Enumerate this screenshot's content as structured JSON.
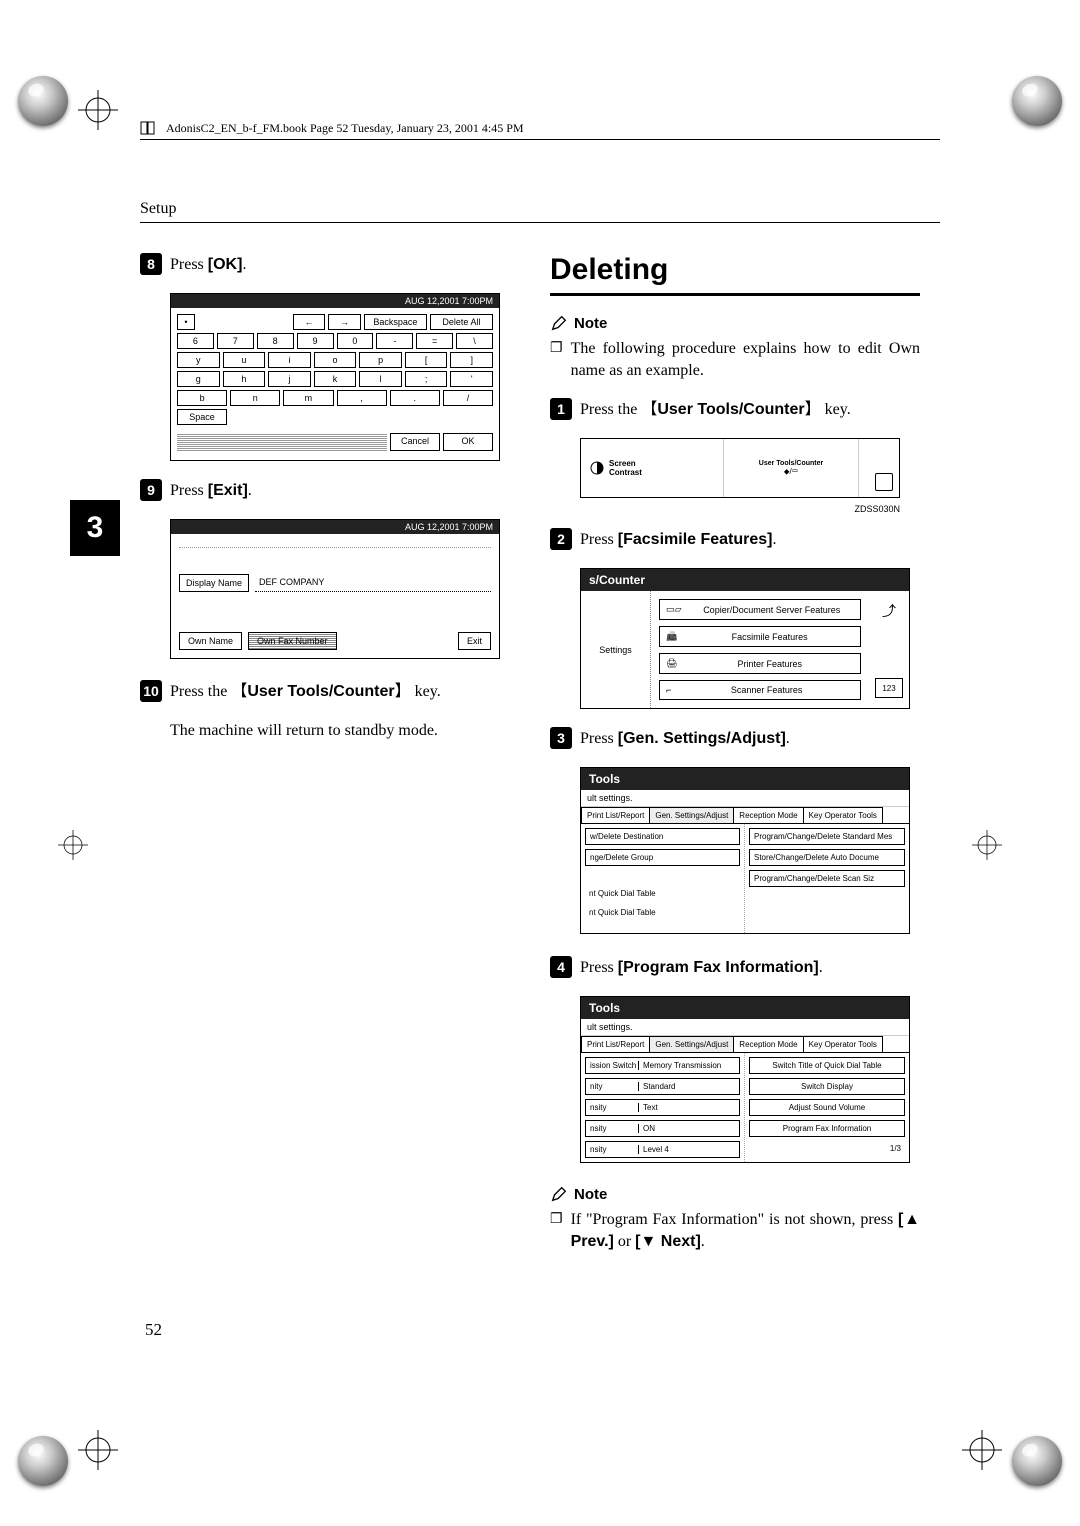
{
  "book_header": "AdonisC2_EN_b-f_FM.book  Page 52  Tuesday, January 23, 2001  4:45 PM",
  "section_label": "Setup",
  "sidebar_number": "3",
  "page_number": "52",
  "left": {
    "step8": {
      "num": "8",
      "prefix": "Press ",
      "button": "[OK]",
      "suffix": "."
    },
    "kbd_header": "AUG  12,2001  7:00PM",
    "kbd": {
      "nav": [
        "←",
        "→",
        "Backspace",
        "Delete All"
      ],
      "r1": [
        "6",
        "7",
        "8",
        "9",
        "0",
        "-",
        "=",
        "\\"
      ],
      "r2": [
        "y",
        "u",
        "i",
        "o",
        "p",
        "[",
        "]"
      ],
      "r3": [
        "g",
        "h",
        "j",
        "k",
        "l",
        ";",
        "'"
      ],
      "r4": [
        "b",
        "n",
        "m",
        ",",
        ".",
        "/"
      ],
      "space": "Space",
      "cancel": "Cancel",
      "ok": "OK"
    },
    "step9": {
      "num": "9",
      "prefix": "Press ",
      "button": "[Exit]",
      "suffix": "."
    },
    "display_name": {
      "header": "AUG  12,2001  7:00PM",
      "label": "Display Name",
      "value": "DEF COMPANY",
      "own_name": "Own Name",
      "own_fax": "Own Fax Number",
      "exit": "Exit"
    },
    "step10": {
      "num": "10",
      "prefix": "Press the ",
      "key_open": "【",
      "key": "User Tools/Counter",
      "key_close": "】",
      "suffix": " key."
    },
    "standby_text": "The machine will return to standby mode."
  },
  "right": {
    "headline": "Deleting",
    "note_label": "Note",
    "note1": "The following procedure explains how to edit Own name as an example.",
    "step1": {
      "num": "1",
      "prefix": "Press the ",
      "key_open": "【",
      "key": "User Tools/Counter",
      "key_close": "】",
      "suffix": " key."
    },
    "device": {
      "left_line1": "Screen",
      "left_line2": "Contrast",
      "mid_line1": "User Tools/Counter",
      "mid_line2": "⬥/▭"
    },
    "device_caption": "ZDSS030N",
    "step2": {
      "num": "2",
      "prefix": "Press ",
      "button": "[Facsimile Features]",
      "suffix": "."
    },
    "scounter": {
      "title": "s/Counter",
      "left": "Settings",
      "items": [
        "Copier/Document Server Features",
        "Facsimile Features",
        "Printer Features",
        "Scanner Features"
      ],
      "right_top": "⤴",
      "right_bot": "123"
    },
    "step3": {
      "num": "3",
      "prefix": "Press ",
      "button": "[Gen. Settings/Adjust]",
      "suffix": "."
    },
    "tools1": {
      "title": "Tools",
      "sub": "ult settings.",
      "tabs": [
        "Print List/Report",
        "Gen. Settings/Adjust",
        "Reception Mode",
        "Key Operator Tools"
      ],
      "left_rows": [
        "w/Delete Destination",
        "nge/Delete Group",
        "nt Quick Dial Table",
        "nt Quick Dial Table"
      ],
      "right_rows": [
        "Program/Change/Delete Standard Mes",
        "Store/Change/Delete Auto Docume",
        "Program/Change/Delete Scan Siz"
      ]
    },
    "step4": {
      "num": "4",
      "prefix": "Press ",
      "button": "[Program Fax Information]",
      "suffix": "."
    },
    "tools2": {
      "title": "Tools",
      "sub": "ult settings.",
      "tabs": [
        "Print List/Report",
        "Gen. Settings/Adjust",
        "Reception Mode",
        "Key Operator Tools"
      ],
      "left_rows": [
        {
          "l": "ission Switch",
          "v": "Memory Transmission"
        },
        {
          "l": "nity",
          "v": "Standard"
        },
        {
          "l": "nsity",
          "v": "Text"
        },
        {
          "l": "nsity",
          "v": "ON"
        },
        {
          "l": "nsity",
          "v": "Level 4"
        }
      ],
      "right_rows": [
        "Switch Title of Quick Dial Table",
        "Switch Display",
        "Adjust Sound Volume",
        "Program Fax Information"
      ],
      "pager": "1/3"
    },
    "note2_pre": "If \"Program Fax Information\" is not shown, press ",
    "note2_b1": "[▲ Prev.]",
    "note2_mid": " or ",
    "note2_b2": "[▼ Next]",
    "note2_post": "."
  }
}
